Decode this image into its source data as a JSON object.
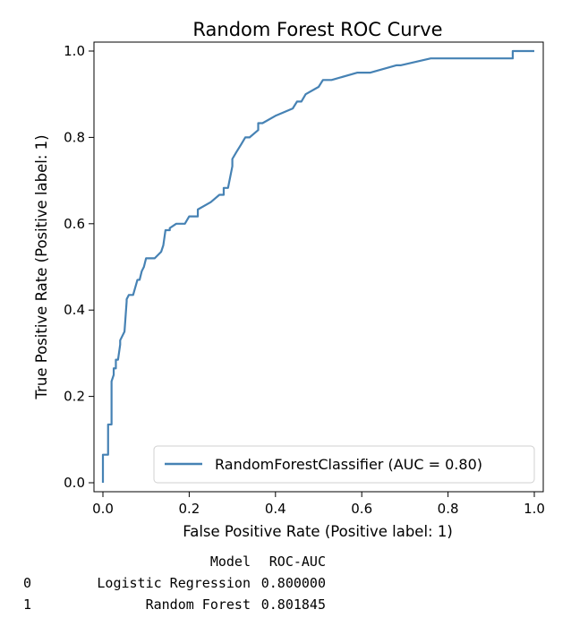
{
  "chart_data": {
    "type": "line",
    "title": "Random Forest ROC Curve",
    "xlabel": "False Positive Rate (Positive label: 1)",
    "ylabel": "True Positive Rate (Positive label: 1)",
    "xlim": [
      0,
      1
    ],
    "ylim": [
      0,
      1
    ],
    "xticks": [
      0.0,
      0.2,
      0.4,
      0.6,
      0.8,
      1.0
    ],
    "yticks": [
      0.0,
      0.2,
      0.4,
      0.6,
      0.8,
      1.0
    ],
    "xtick_labels": [
      "0.0",
      "0.2",
      "0.4",
      "0.6",
      "0.8",
      "1.0"
    ],
    "ytick_labels": [
      "0.0",
      "0.2",
      "0.4",
      "0.6",
      "0.8",
      "1.0"
    ],
    "grid": false,
    "legend_position": "lower-right",
    "series": [
      {
        "name": "RandomForestClassifier (AUC = 0.80)",
        "color": "#4682b4",
        "x": [
          0.0,
          0.0,
          0.0,
          0.012,
          0.012,
          0.02,
          0.02,
          0.025,
          0.025,
          0.03,
          0.03,
          0.035,
          0.04,
          0.04,
          0.05,
          0.05,
          0.055,
          0.055,
          0.06,
          0.07,
          0.08,
          0.085,
          0.09,
          0.095,
          0.1,
          0.11,
          0.12,
          0.135,
          0.14,
          0.145,
          0.155,
          0.155,
          0.17,
          0.18,
          0.19,
          0.2,
          0.21,
          0.22,
          0.22,
          0.25,
          0.27,
          0.28,
          0.28,
          0.29,
          0.3,
          0.3,
          0.31,
          0.32,
          0.33,
          0.34,
          0.36,
          0.36,
          0.37,
          0.37,
          0.4,
          0.4,
          0.44,
          0.45,
          0.46,
          0.47,
          0.47,
          0.5,
          0.5,
          0.51,
          0.52,
          0.53,
          0.59,
          0.6,
          0.62,
          0.68,
          0.69,
          0.76,
          0.8,
          0.95,
          0.95,
          1.0
        ],
        "y": [
          0.0,
          0.03,
          0.065,
          0.065,
          0.135,
          0.135,
          0.235,
          0.25,
          0.265,
          0.265,
          0.285,
          0.285,
          0.32,
          0.33,
          0.35,
          0.35,
          0.42,
          0.425,
          0.435,
          0.435,
          0.47,
          0.47,
          0.49,
          0.5,
          0.52,
          0.52,
          0.52,
          0.535,
          0.55,
          0.585,
          0.585,
          0.59,
          0.6,
          0.6,
          0.6,
          0.617,
          0.617,
          0.617,
          0.633,
          0.65,
          0.667,
          0.667,
          0.683,
          0.683,
          0.733,
          0.75,
          0.767,
          0.783,
          0.8,
          0.8,
          0.817,
          0.833,
          0.833,
          0.833,
          0.85,
          0.85,
          0.867,
          0.883,
          0.883,
          0.9,
          0.9,
          0.917,
          0.917,
          0.933,
          0.933,
          0.933,
          0.95,
          0.95,
          0.95,
          0.967,
          0.967,
          0.983,
          0.983,
          0.983,
          1.0,
          1.0
        ]
      }
    ]
  },
  "table": {
    "headers": [
      "",
      "Model",
      "ROC-AUC"
    ],
    "rows": [
      {
        "index": "0",
        "model": "Logistic Regression",
        "roc_auc": "0.800000"
      },
      {
        "index": "1",
        "model": "Random Forest",
        "roc_auc": "0.801845"
      }
    ]
  }
}
